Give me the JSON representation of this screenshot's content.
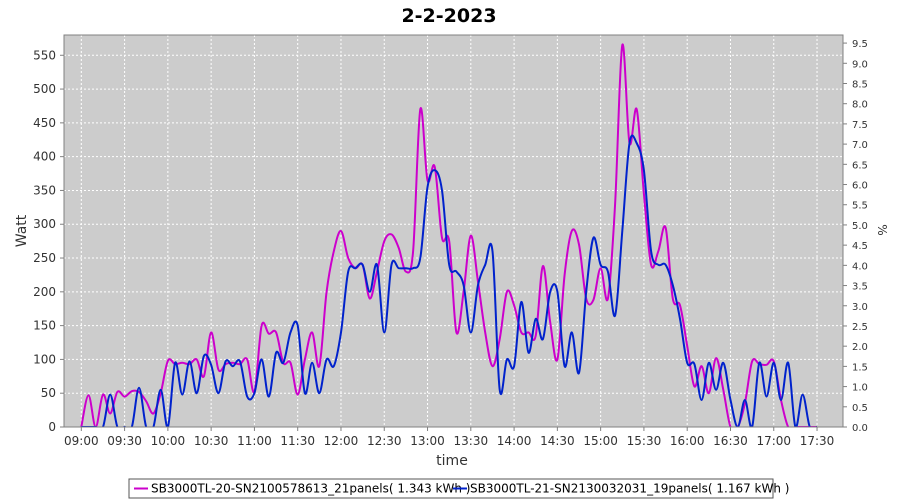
{
  "chart_data": {
    "type": "line",
    "title": "2-2-2023",
    "xlabel": "time",
    "ylabel": "Watt",
    "y2label": "%",
    "ylim": [
      0,
      580
    ],
    "y2lim": [
      0,
      9.7
    ],
    "grid": true,
    "legend_position": "bottom-center",
    "plot_background": "#cccccc",
    "yticks": [
      0,
      50,
      100,
      150,
      200,
      250,
      300,
      350,
      400,
      450,
      500,
      550
    ],
    "y2ticks": [
      "0.0",
      "0.5",
      "1.0",
      "1.5",
      "2.0",
      "2.5",
      "3.0",
      "3.5",
      "4.0",
      "4.5",
      "5.0",
      "5.5",
      "6.0",
      "6.5",
      "7.0",
      "7.5",
      "8.0",
      "8.5",
      "9.0",
      "9.5"
    ],
    "xticks": [
      "09:00",
      "09:30",
      "10:00",
      "10:30",
      "11:00",
      "11:30",
      "12:00",
      "12:30",
      "13:00",
      "13:30",
      "14:00",
      "14:30",
      "15:00",
      "15:30",
      "16:00",
      "16:30",
      "17:00",
      "17:30"
    ],
    "series": [
      {
        "name": "SB3000TL-20-SN2100578613_21panels( 1.343 kWh )",
        "color": "#cc00cc",
        "points": [
          [
            "09:00",
            0
          ],
          [
            "09:05",
            47
          ],
          [
            "09:10",
            0
          ],
          [
            "09:15",
            48
          ],
          [
            "09:20",
            20
          ],
          [
            "09:25",
            52
          ],
          [
            "09:30",
            45
          ],
          [
            "09:35",
            53
          ],
          [
            "09:40",
            52
          ],
          [
            "09:45",
            38
          ],
          [
            "09:50",
            20
          ],
          [
            "09:55",
            50
          ],
          [
            "10:00",
            98
          ],
          [
            "10:05",
            93
          ],
          [
            "10:10",
            95
          ],
          [
            "10:15",
            93
          ],
          [
            "10:20",
            100
          ],
          [
            "10:25",
            75
          ],
          [
            "10:30",
            140
          ],
          [
            "10:35",
            85
          ],
          [
            "10:40",
            93
          ],
          [
            "10:45",
            95
          ],
          [
            "10:50",
            93
          ],
          [
            "10:55",
            100
          ],
          [
            "11:00",
            52
          ],
          [
            "11:05",
            150
          ],
          [
            "11:10",
            138
          ],
          [
            "11:15",
            140
          ],
          [
            "11:20",
            95
          ],
          [
            "11:25",
            95
          ],
          [
            "11:30",
            48
          ],
          [
            "11:35",
            100
          ],
          [
            "11:40",
            140
          ],
          [
            "11:45",
            90
          ],
          [
            "11:50",
            200
          ],
          [
            "11:55",
            260
          ],
          [
            "12:00",
            290
          ],
          [
            "12:05",
            250
          ],
          [
            "12:10",
            235
          ],
          [
            "12:15",
            240
          ],
          [
            "12:20",
            190
          ],
          [
            "12:25",
            230
          ],
          [
            "12:30",
            275
          ],
          [
            "12:35",
            285
          ],
          [
            "12:40",
            265
          ],
          [
            "12:45",
            230
          ],
          [
            "12:50",
            260
          ],
          [
            "12:55",
            470
          ],
          [
            "13:00",
            365
          ],
          [
            "13:05",
            385
          ],
          [
            "13:10",
            280
          ],
          [
            "13:15",
            275
          ],
          [
            "13:20",
            140
          ],
          [
            "13:25",
            200
          ],
          [
            "13:30",
            283
          ],
          [
            "13:35",
            215
          ],
          [
            "13:40",
            140
          ],
          [
            "13:45",
            90
          ],
          [
            "13:50",
            130
          ],
          [
            "13:55",
            200
          ],
          [
            "14:00",
            180
          ],
          [
            "14:05",
            140
          ],
          [
            "14:10",
            140
          ],
          [
            "14:15",
            135
          ],
          [
            "14:20",
            238
          ],
          [
            "14:25",
            155
          ],
          [
            "14:30",
            100
          ],
          [
            "14:35",
            225
          ],
          [
            "14:40",
            290
          ],
          [
            "14:45",
            270
          ],
          [
            "14:50",
            190
          ],
          [
            "14:55",
            188
          ],
          [
            "15:00",
            235
          ],
          [
            "15:05",
            190
          ],
          [
            "15:10",
            330
          ],
          [
            "15:15",
            565
          ],
          [
            "15:20",
            420
          ],
          [
            "15:25",
            470
          ],
          [
            "15:30",
            345
          ],
          [
            "15:35",
            240
          ],
          [
            "15:40",
            260
          ],
          [
            "15:45",
            295
          ],
          [
            "15:50",
            190
          ],
          [
            "15:55",
            180
          ],
          [
            "16:00",
            120
          ],
          [
            "16:05",
            60
          ],
          [
            "16:10",
            90
          ],
          [
            "16:15",
            50
          ],
          [
            "16:20",
            102
          ],
          [
            "16:25",
            55
          ],
          [
            "16:30",
            0
          ],
          [
            "16:35",
            0
          ],
          [
            "16:40",
            35
          ],
          [
            "16:45",
            97
          ],
          [
            "16:50",
            93
          ],
          [
            "16:55",
            92
          ],
          [
            "17:00",
            97
          ],
          [
            "17:05",
            40
          ],
          [
            "17:10",
            0
          ],
          [
            "17:15",
            0
          ],
          [
            "17:20",
            0
          ],
          [
            "17:25",
            0
          ],
          [
            "17:30",
            0
          ]
        ]
      },
      {
        "name": "SB3000TL-21-SN2130032031_19panels( 1.167 kWh )",
        "color": "#0022cc",
        "points": [
          [
            "09:00",
            0
          ],
          [
            "09:05",
            0
          ],
          [
            "09:10",
            0
          ],
          [
            "09:15",
            0
          ],
          [
            "09:20",
            48
          ],
          [
            "09:25",
            0
          ],
          [
            "09:30",
            0
          ],
          [
            "09:35",
            0
          ],
          [
            "09:40",
            58
          ],
          [
            "09:45",
            0
          ],
          [
            "09:50",
            0
          ],
          [
            "09:55",
            55
          ],
          [
            "10:00",
            0
          ],
          [
            "10:05",
            95
          ],
          [
            "10:10",
            48
          ],
          [
            "10:15",
            97
          ],
          [
            "10:20",
            50
          ],
          [
            "10:25",
            105
          ],
          [
            "10:30",
            92
          ],
          [
            "10:35",
            50
          ],
          [
            "10:40",
            97
          ],
          [
            "10:45",
            90
          ],
          [
            "10:50",
            97
          ],
          [
            "10:55",
            45
          ],
          [
            "11:00",
            50
          ],
          [
            "11:05",
            100
          ],
          [
            "11:10",
            45
          ],
          [
            "11:15",
            110
          ],
          [
            "11:20",
            95
          ],
          [
            "11:25",
            140
          ],
          [
            "11:30",
            150
          ],
          [
            "11:35",
            50
          ],
          [
            "11:40",
            95
          ],
          [
            "11:45",
            50
          ],
          [
            "11:50",
            100
          ],
          [
            "11:55",
            90
          ],
          [
            "12:00",
            140
          ],
          [
            "12:05",
            230
          ],
          [
            "12:10",
            235
          ],
          [
            "12:15",
            240
          ],
          [
            "12:20",
            200
          ],
          [
            "12:25",
            240
          ],
          [
            "12:30",
            140
          ],
          [
            "12:35",
            240
          ],
          [
            "12:40",
            235
          ],
          [
            "12:45",
            235
          ],
          [
            "12:50",
            235
          ],
          [
            "12:55",
            250
          ],
          [
            "13:00",
            355
          ],
          [
            "13:05",
            380
          ],
          [
            "13:10",
            350
          ],
          [
            "13:15",
            240
          ],
          [
            "13:20",
            230
          ],
          [
            "13:25",
            210
          ],
          [
            "13:30",
            140
          ],
          [
            "13:35",
            210
          ],
          [
            "13:40",
            240
          ],
          [
            "13:45",
            260
          ],
          [
            "13:50",
            55
          ],
          [
            "13:55",
            100
          ],
          [
            "14:00",
            90
          ],
          [
            "14:05",
            185
          ],
          [
            "14:10",
            110
          ],
          [
            "14:15",
            160
          ],
          [
            "14:20",
            130
          ],
          [
            "14:25",
            200
          ],
          [
            "14:30",
            200
          ],
          [
            "14:35",
            90
          ],
          [
            "14:40",
            140
          ],
          [
            "14:45",
            80
          ],
          [
            "14:50",
            200
          ],
          [
            "14:55",
            280
          ],
          [
            "15:00",
            240
          ],
          [
            "15:05",
            230
          ],
          [
            "15:10",
            165
          ],
          [
            "15:15",
            290
          ],
          [
            "15:20",
            420
          ],
          [
            "15:25",
            420
          ],
          [
            "15:30",
            380
          ],
          [
            "15:35",
            260
          ],
          [
            "15:40",
            240
          ],
          [
            "15:45",
            240
          ],
          [
            "15:50",
            210
          ],
          [
            "15:55",
            160
          ],
          [
            "16:00",
            95
          ],
          [
            "16:05",
            93
          ],
          [
            "16:10",
            40
          ],
          [
            "16:15",
            95
          ],
          [
            "16:20",
            55
          ],
          [
            "16:25",
            95
          ],
          [
            "16:30",
            40
          ],
          [
            "16:35",
            0
          ],
          [
            "16:40",
            40
          ],
          [
            "16:45",
            0
          ],
          [
            "16:50",
            95
          ],
          [
            "16:55",
            45
          ],
          [
            "17:00",
            95
          ],
          [
            "17:05",
            40
          ],
          [
            "17:10",
            95
          ],
          [
            "17:15",
            0
          ],
          [
            "17:20",
            48
          ],
          [
            "17:25",
            0
          ],
          [
            "17:30",
            0
          ]
        ]
      }
    ]
  }
}
